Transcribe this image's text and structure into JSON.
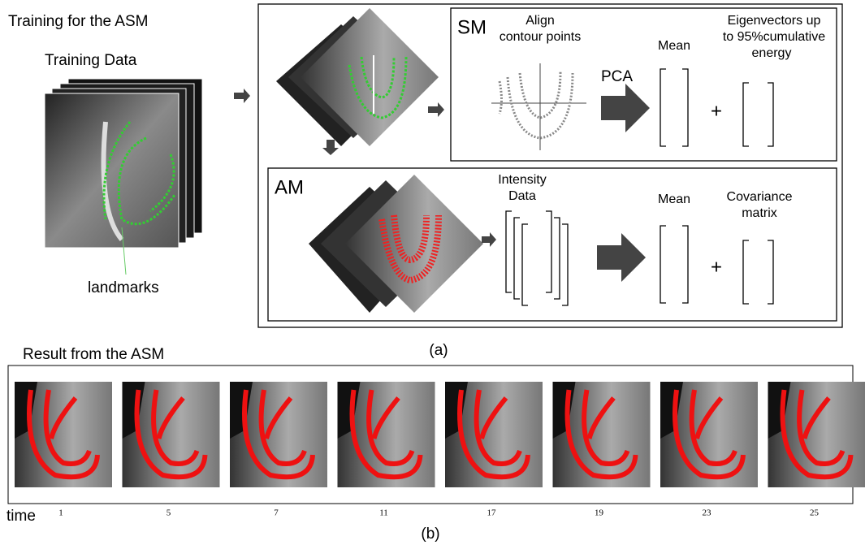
{
  "title": "Training for the ASM",
  "training": {
    "label": "Training Data",
    "landmarks": "landmarks"
  },
  "sm": {
    "label": "SM",
    "align": [
      "Align",
      "contour points"
    ],
    "pca": "PCA",
    "mean": "Mean",
    "eigen": [
      "Eigenvectors up",
      "to 95%cumulative",
      "energy"
    ],
    "plus": "+"
  },
  "am": {
    "label": "AM",
    "intensity": [
      "Intensity",
      "Data"
    ],
    "mean": "Mean",
    "covariance": [
      "Covariance",
      "matrix"
    ],
    "plus": "+"
  },
  "caption_a": "(a)",
  "result": {
    "title": "Result from the ASM",
    "time": "time",
    "frames": [
      1,
      5,
      7,
      11,
      17,
      19,
      23,
      25
    ]
  },
  "caption_b": "(b)"
}
